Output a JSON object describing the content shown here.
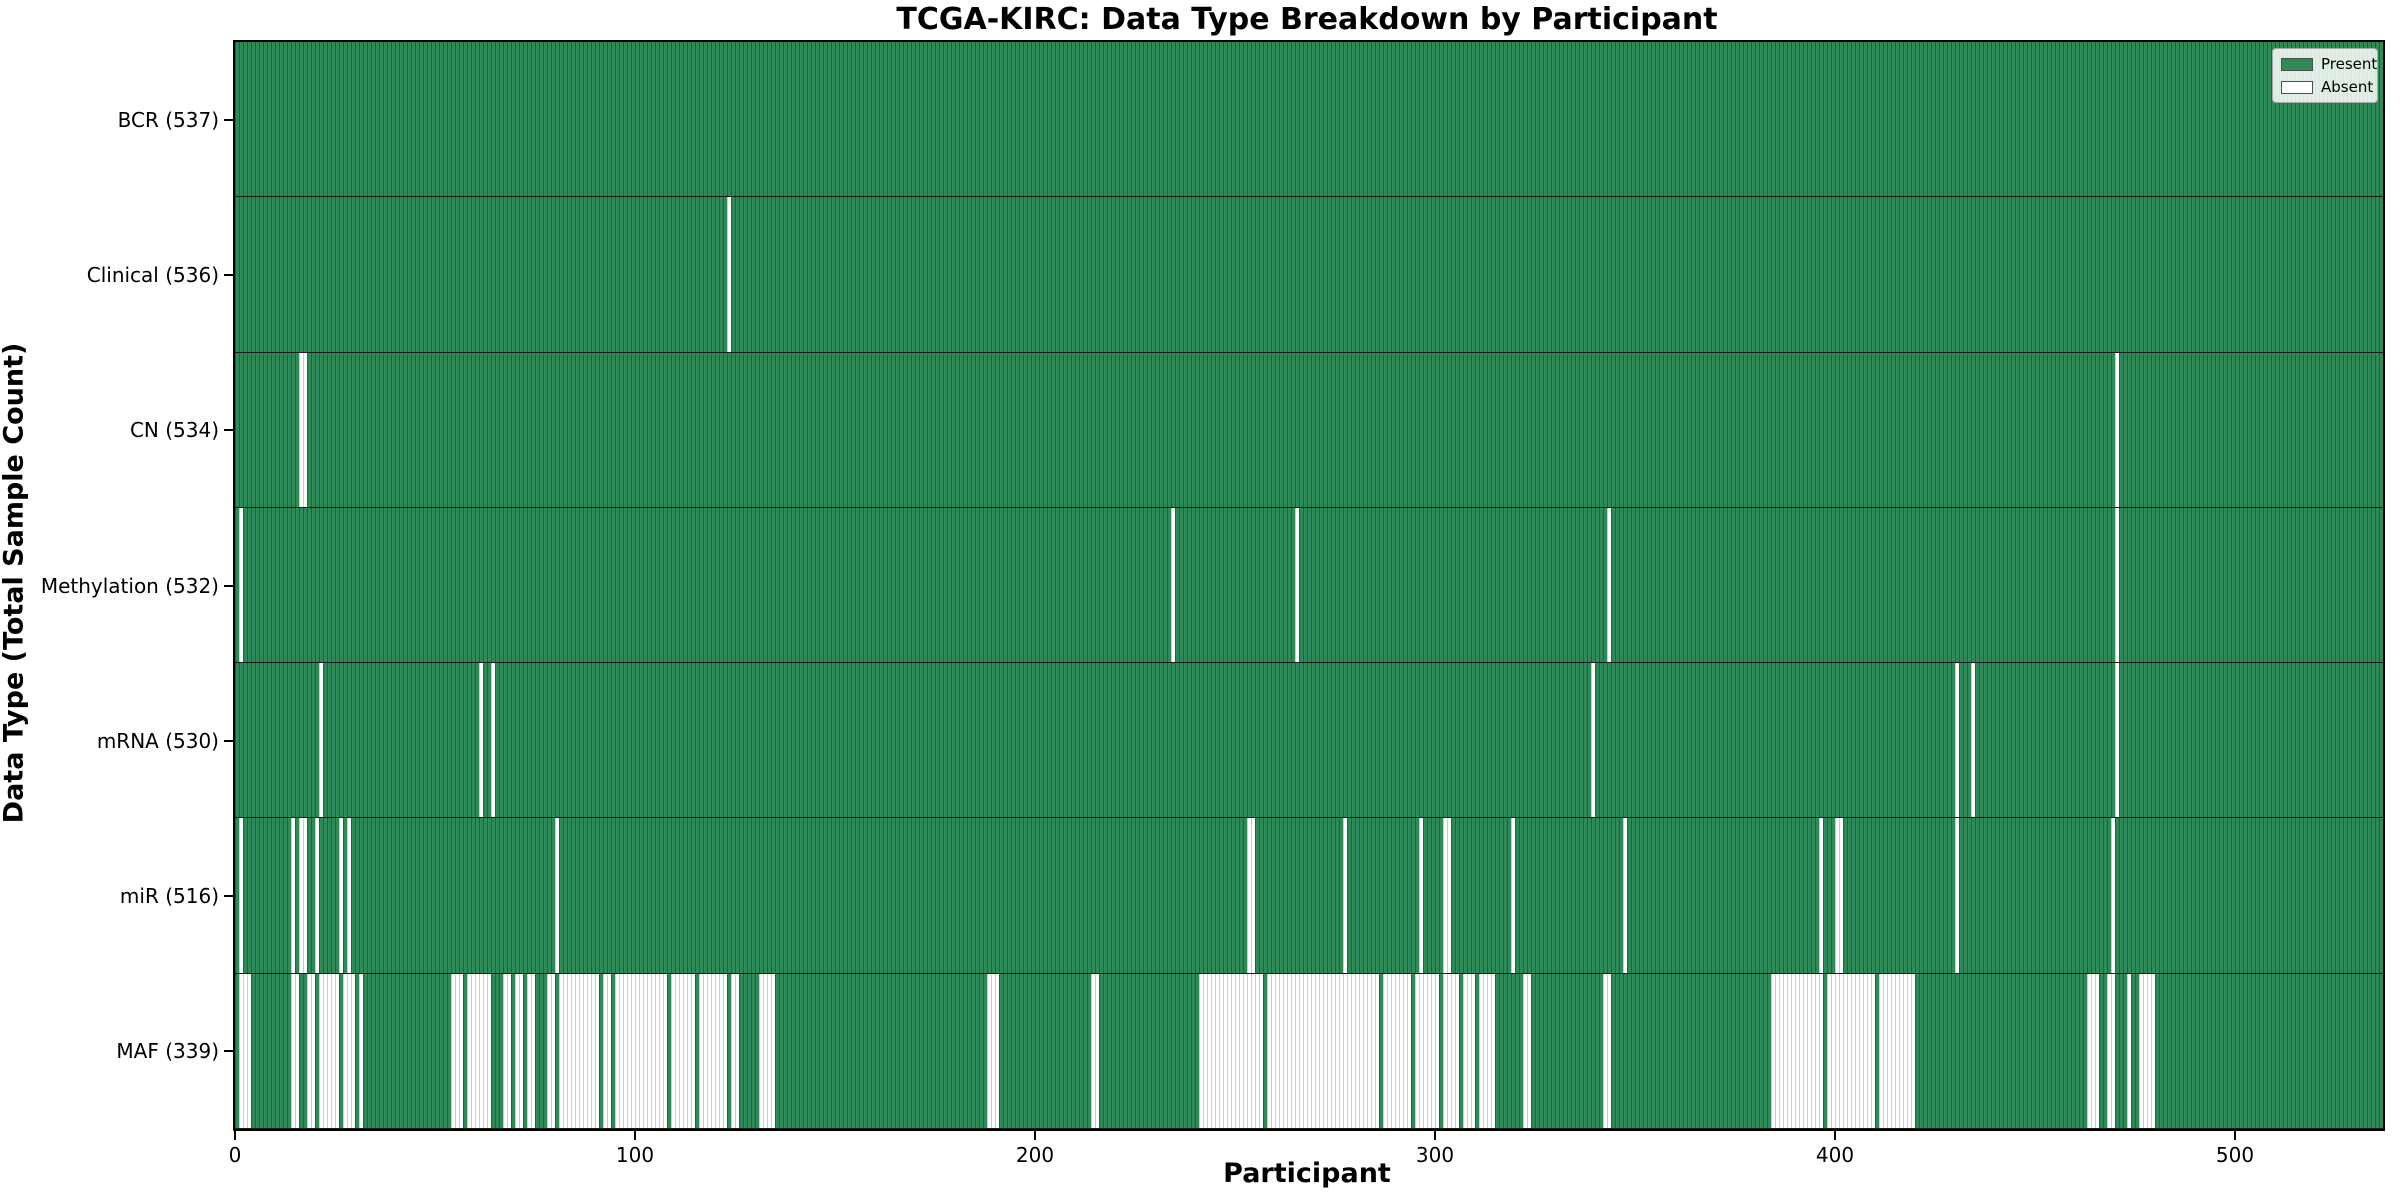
{
  "title": "TCGA-KIRC: Data Type Breakdown by Participant",
  "xlabel": "Participant",
  "ylabel": "Data Type (Total Sample Count)",
  "legend": {
    "present_label": "Present",
    "absent_label": "Absent"
  },
  "colors": {
    "present": "#2e8b57",
    "present_edge": "#1f6240",
    "absent": "#ffffff",
    "absent_edge": "#cccccc"
  },
  "chart_data": {
    "type": "heatmap",
    "title": "TCGA-KIRC: Data Type Breakdown by Participant",
    "xlabel": "Participant",
    "ylabel": "Data Type (Total Sample Count)",
    "x_range": [
      0,
      537
    ],
    "x_ticks": [
      0,
      100,
      200,
      300,
      400,
      500
    ],
    "total_participants": 537,
    "legend_entries": [
      "Present",
      "Absent"
    ],
    "legend_position": "upper right",
    "grid": false,
    "value_encoding": "green = data type present for participant, white = absent; absent_ranges are inclusive participant index ranges",
    "rows": [
      {
        "name": "BCR",
        "label": "BCR (537)",
        "present_count": 537,
        "absent_ranges": []
      },
      {
        "name": "Clinical",
        "label": "Clinical (536)",
        "present_count": 536,
        "absent_ranges": [
          [
            123,
            123
          ]
        ]
      },
      {
        "name": "CN",
        "label": "CN (534)",
        "present_count": 534,
        "absent_ranges": [
          [
            16,
            17
          ],
          [
            470,
            470
          ]
        ]
      },
      {
        "name": "Methylation",
        "label": "Methylation (532)",
        "present_count": 532,
        "absent_ranges": [
          [
            1,
            1
          ],
          [
            234,
            234
          ],
          [
            265,
            265
          ],
          [
            343,
            343
          ],
          [
            470,
            470
          ]
        ]
      },
      {
        "name": "mRNA",
        "label": "mRNA (530)",
        "present_count": 530,
        "absent_ranges": [
          [
            21,
            21
          ],
          [
            61,
            61
          ],
          [
            64,
            64
          ],
          [
            339,
            339
          ],
          [
            430,
            430
          ],
          [
            434,
            434
          ],
          [
            470,
            470
          ]
        ]
      },
      {
        "name": "miR",
        "label": "miR (516)",
        "present_count": 516,
        "absent_ranges": [
          [
            1,
            1
          ],
          [
            14,
            14
          ],
          [
            16,
            17
          ],
          [
            20,
            20
          ],
          [
            26,
            26
          ],
          [
            28,
            28
          ],
          [
            80,
            80
          ],
          [
            253,
            254
          ],
          [
            277,
            277
          ],
          [
            296,
            296
          ],
          [
            302,
            303
          ],
          [
            319,
            319
          ],
          [
            347,
            347
          ],
          [
            396,
            396
          ],
          [
            400,
            401
          ],
          [
            430,
            430
          ],
          [
            469,
            469
          ]
        ]
      },
      {
        "name": "MAF",
        "label": "MAF (339)",
        "present_count": 339,
        "absent_ranges": [
          [
            1,
            3
          ],
          [
            14,
            15
          ],
          [
            18,
            19
          ],
          [
            21,
            25
          ],
          [
            27,
            29
          ],
          [
            31,
            31
          ],
          [
            54,
            56
          ],
          [
            58,
            63
          ],
          [
            67,
            68
          ],
          [
            70,
            71
          ],
          [
            73,
            74
          ],
          [
            78,
            79
          ],
          [
            81,
            90
          ],
          [
            92,
            93
          ],
          [
            95,
            107
          ],
          [
            109,
            114
          ],
          [
            116,
            122
          ],
          [
            124,
            125
          ],
          [
            131,
            134
          ],
          [
            188,
            190
          ],
          [
            214,
            215
          ],
          [
            241,
            256
          ],
          [
            258,
            285
          ],
          [
            287,
            293
          ],
          [
            295,
            300
          ],
          [
            302,
            305
          ],
          [
            307,
            309
          ],
          [
            311,
            314
          ],
          [
            322,
            323
          ],
          [
            342,
            343
          ],
          [
            384,
            396
          ],
          [
            398,
            409
          ],
          [
            411,
            419
          ],
          [
            463,
            465
          ],
          [
            468,
            469
          ],
          [
            473,
            473
          ],
          [
            476,
            479
          ]
        ]
      }
    ]
  }
}
